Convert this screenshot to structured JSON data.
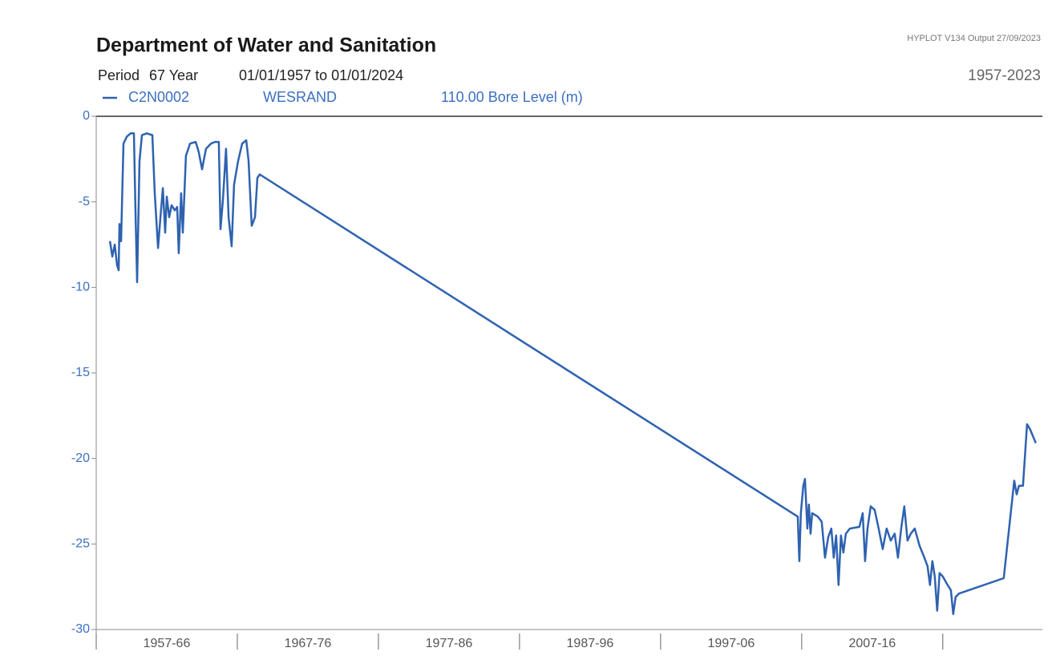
{
  "chart_data": {
    "type": "line",
    "title": "Department of Water and Sanitation",
    "software": "HYPLOT V134  Output 27/09/2023",
    "period_label": "Period",
    "period_length": "67 Year",
    "period_range": "01/01/1957  to 01/01/2024",
    "year_span": "1957-2023",
    "station": "WESRAND",
    "variable": "110.00 Bore Level (m)",
    "xlim": [
      1957,
      2024
    ],
    "xticks": [
      {
        "value": 1957,
        "label": "1957-66"
      },
      {
        "value": 1967,
        "label": "1967-76"
      },
      {
        "value": 1977,
        "label": "1977-86"
      },
      {
        "value": 1987,
        "label": "1987-96"
      },
      {
        "value": 1997,
        "label": "1997-06"
      },
      {
        "value": 2007,
        "label": "2007-16"
      }
    ],
    "ylim": [
      -30,
      0
    ],
    "yticks": [
      0,
      -5,
      -10,
      -15,
      -20,
      -25,
      -30
    ],
    "grid": false,
    "series": [
      {
        "name": "C2N0002",
        "color": "#2e62b0",
        "x": [
          1957.97,
          1958.14,
          1958.31,
          1958.48,
          1958.59,
          1958.65,
          1958.76,
          1958.93,
          1959.16,
          1959.44,
          1959.67,
          1959.78,
          1959.9,
          1960.07,
          1960.24,
          1960.58,
          1960.98,
          1961.15,
          1961.38,
          1961.55,
          1961.72,
          1961.89,
          1962.0,
          1962.17,
          1962.34,
          1962.57,
          1962.74,
          1962.85,
          1963.02,
          1963.14,
          1963.36,
          1963.65,
          1964.05,
          1964.27,
          1964.5,
          1964.78,
          1965.13,
          1965.41,
          1965.69,
          1965.81,
          1965.98,
          1966.2,
          1966.38,
          1966.6,
          1966.77,
          1967.06,
          1967.34,
          1967.63,
          1967.8,
          1968.02,
          1968.25,
          1968.42,
          1968.59,
          2006.72,
          2006.83,
          2006.94,
          2007.11,
          2007.23,
          2007.4,
          2007.51,
          2007.63,
          2007.74,
          2008.14,
          2008.42,
          2008.65,
          2008.88,
          2009.1,
          2009.27,
          2009.44,
          2009.61,
          2009.78,
          2009.95,
          2010.13,
          2010.41,
          2011.09,
          2011.32,
          2011.49,
          2011.66,
          2011.89,
          2012.17,
          2012.45,
          2012.74,
          2013.02,
          2013.31,
          2013.59,
          2013.82,
          2014.05,
          2014.27,
          2014.5,
          2014.73,
          2015.01,
          2015.35,
          2015.69,
          2015.92,
          2016.09,
          2016.26,
          2016.43,
          2016.6,
          2016.77,
          2017.0,
          2017.34,
          2017.57,
          2017.74,
          2017.91,
          2018.14,
          2021.32,
          2022.06,
          2022.23,
          2022.4,
          2022.68,
          2022.97,
          2023.19,
          2023.59
        ],
        "values": [
          -7.3,
          -8.2,
          -7.5,
          -8.7,
          -9,
          -6.3,
          -7.3,
          -1.6,
          -1.2,
          -1,
          -1,
          -5.4,
          -9.7,
          -2.6,
          -1.1,
          -1,
          -1.1,
          -4.5,
          -7.7,
          -5.9,
          -4.2,
          -6.8,
          -4.7,
          -5.9,
          -5.2,
          -5.5,
          -5.3,
          -8,
          -4.5,
          -6.8,
          -2.3,
          -1.6,
          -1.5,
          -2.1,
          -3.1,
          -1.9,
          -1.6,
          -1.5,
          -1.5,
          -6.6,
          -4.9,
          -1.9,
          -5.9,
          -7.6,
          -4,
          -2.6,
          -1.6,
          -1.4,
          -2.6,
          -6.4,
          -5.9,
          -3.6,
          -3.4,
          -23.4,
          -26,
          -23.2,
          -21.6,
          -21.2,
          -24.1,
          -22.7,
          -24.4,
          -23.2,
          -23.4,
          -23.7,
          -25.8,
          -24.6,
          -24.1,
          -25.8,
          -24.5,
          -27.4,
          -24.5,
          -25.5,
          -24.4,
          -24.1,
          -24,
          -23.2,
          -26,
          -24.1,
          -22.8,
          -23,
          -24.1,
          -25.3,
          -24.1,
          -24.8,
          -24.4,
          -25.8,
          -24.1,
          -22.8,
          -24.8,
          -24.4,
          -24.1,
          -25.1,
          -25.8,
          -26.3,
          -27.4,
          -26,
          -26.9,
          -28.9,
          -26.7,
          -26.9,
          -27.4,
          -27.7,
          -29.1,
          -28.1,
          -27.9,
          -27,
          -21.3,
          -22.1,
          -21.6,
          -21.6,
          -18,
          -18.3,
          -19.1
        ]
      }
    ]
  }
}
